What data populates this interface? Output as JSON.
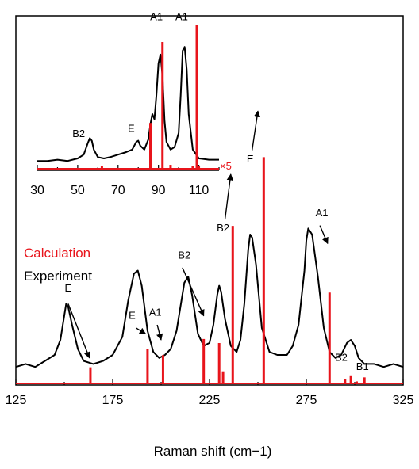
{
  "colors": {
    "experiment": "#000000",
    "calculation": "#e8141b",
    "axis": "#000000",
    "background": "#ffffff"
  },
  "chart_data": [
    {
      "type": "line",
      "panel": "main",
      "xlabel": "Raman shift (cm−1)",
      "xlim": [
        125,
        325
      ],
      "xticks": [
        125,
        175,
        225,
        275,
        325
      ],
      "tick_labels": [
        "125",
        "175",
        "225",
        "275",
        "325"
      ],
      "legend": [
        "Calculation",
        "Experiment"
      ],
      "legend_placement": "left",
      "series": [
        {
          "name": "Experiment",
          "x": [
            125,
            130,
            135,
            140,
            145,
            148,
            151,
            152,
            154,
            157,
            160,
            165,
            170,
            175,
            180,
            183,
            186,
            188,
            190,
            193,
            196,
            199,
            202,
            205,
            208,
            210,
            212,
            214,
            216,
            219,
            222,
            225,
            227,
            229,
            230,
            231,
            233,
            236,
            239,
            241,
            243,
            245,
            246,
            247,
            249,
            252,
            256,
            260,
            265,
            268,
            271,
            274,
            275,
            276,
            278,
            281,
            284,
            287,
            290,
            293,
            296,
            298,
            300,
            302,
            305,
            310,
            315,
            320,
            325
          ],
          "y": [
            0.06,
            0.07,
            0.06,
            0.08,
            0.1,
            0.15,
            0.27,
            0.26,
            0.2,
            0.12,
            0.08,
            0.07,
            0.08,
            0.1,
            0.16,
            0.28,
            0.37,
            0.38,
            0.33,
            0.18,
            0.11,
            0.09,
            0.1,
            0.12,
            0.18,
            0.26,
            0.34,
            0.36,
            0.3,
            0.17,
            0.13,
            0.14,
            0.2,
            0.3,
            0.33,
            0.31,
            0.22,
            0.13,
            0.11,
            0.15,
            0.27,
            0.45,
            0.5,
            0.49,
            0.4,
            0.19,
            0.11,
            0.1,
            0.1,
            0.13,
            0.2,
            0.38,
            0.48,
            0.52,
            0.5,
            0.36,
            0.19,
            0.11,
            0.09,
            0.1,
            0.14,
            0.15,
            0.13,
            0.09,
            0.07,
            0.07,
            0.06,
            0.07,
            0.06
          ]
        },
        {
          "name": "Calculation",
          "peaks": [
            {
              "x": 163.5,
              "y": 0.08
            },
            {
              "x": 193,
              "y": 0.17
            },
            {
              "x": 201,
              "y": 0.14
            },
            {
              "x": 222,
              "y": 0.22
            },
            {
              "x": 230,
              "y": 0.2
            },
            {
              "x": 232,
              "y": 0.06
            },
            {
              "x": 237,
              "y": 0.78
            },
            {
              "x": 253,
              "y": 1.12
            },
            {
              "x": 287,
              "y": 0.45
            },
            {
              "x": 295,
              "y": 0.02
            },
            {
              "x": 298,
              "y": 0.04
            },
            {
              "x": 301,
              "y": 0.01
            },
            {
              "x": 305,
              "y": 0.03
            }
          ]
        }
      ],
      "annotations": [
        {
          "label": "E",
          "text_x": 152,
          "text_y": 0.31,
          "arrow_from": [
            152,
            0.27
          ],
          "arrow_to": [
            163,
            0.09
          ]
        },
        {
          "label": "E",
          "text_x": 185,
          "text_y": 0.22,
          "arrow_from": [
            187,
            0.19
          ],
          "arrow_to": [
            192,
            0.17
          ]
        },
        {
          "label": "A1",
          "text_x": 197,
          "text_y": 0.23,
          "arrow_from": [
            198,
            0.2
          ],
          "arrow_to": [
            200,
            0.15
          ]
        },
        {
          "label": "B2",
          "text_x": 212,
          "text_y": 0.42,
          "arrow_from": [
            211,
            0.39
          ],
          "arrow_to": [
            222,
            0.23
          ]
        },
        {
          "label": "B2",
          "text_x": 232,
          "text_y": 0.51,
          "arrow_from": null,
          "arrow_to": null
        },
        {
          "label": "",
          "text_x": null,
          "text_y": null,
          "arrow_from": [
            233,
            0.55
          ],
          "arrow_to": [
            236,
            0.7
          ]
        },
        {
          "label": "E",
          "text_x": 246,
          "text_y": 0.74,
          "arrow_from": [
            247,
            0.78
          ],
          "arrow_to": [
            250,
            0.91
          ]
        },
        {
          "label": "A1",
          "text_x": 283,
          "text_y": 0.56,
          "arrow_from": [
            282,
            0.53
          ],
          "arrow_to": [
            286,
            0.47
          ]
        },
        {
          "label": "B2",
          "text_x": 293,
          "text_y": 0.08,
          "arrow_from": null,
          "arrow_to": null
        },
        {
          "label": "B1",
          "text_x": 304,
          "text_y": 0.05,
          "arrow_from": null,
          "arrow_to": null
        }
      ]
    },
    {
      "type": "line",
      "panel": "inset",
      "xlim": [
        30,
        120
      ],
      "xticks": [
        30,
        50,
        70,
        90,
        110
      ],
      "tick_labels": [
        "30",
        "50",
        "70",
        "90",
        "110"
      ],
      "scale_note": "×5",
      "series": [
        {
          "name": "Experiment",
          "x": [
            30,
            35,
            40,
            45,
            50,
            53,
            55,
            56,
            57,
            58,
            60,
            63,
            66,
            70,
            74,
            77,
            79,
            80,
            81,
            83,
            85,
            86,
            87,
            88,
            89,
            90,
            91,
            92,
            93,
            94,
            96,
            98,
            100,
            101,
            102,
            103,
            104,
            105,
            107,
            110,
            115,
            120
          ],
          "y": [
            0.03,
            0.03,
            0.04,
            0.03,
            0.05,
            0.08,
            0.17,
            0.21,
            0.19,
            0.12,
            0.06,
            0.05,
            0.06,
            0.08,
            0.1,
            0.12,
            0.18,
            0.19,
            0.15,
            0.12,
            0.2,
            0.32,
            0.4,
            0.36,
            0.55,
            0.8,
            0.87,
            0.7,
            0.35,
            0.18,
            0.12,
            0.14,
            0.25,
            0.55,
            0.9,
            0.93,
            0.75,
            0.4,
            0.12,
            0.05,
            0.04,
            0.04
          ]
        },
        {
          "name": "Calculation",
          "peaks": [
            {
              "x": 62,
              "y": 0.02
            },
            {
              "x": 86,
              "y": 0.35
            },
            {
              "x": 92,
              "y": 0.97
            },
            {
              "x": 96,
              "y": 0.03
            },
            {
              "x": 107,
              "y": 0.02
            },
            {
              "x": 109,
              "y": 1.1
            },
            {
              "x": 110,
              "y": 0.02
            }
          ]
        }
      ],
      "annotations": [
        {
          "label": "B2",
          "x": 50.5,
          "y": 0.22
        },
        {
          "label": "E",
          "x": 76.5,
          "y": 0.26
        },
        {
          "label": "A1",
          "x": 89,
          "y": 1.14
        },
        {
          "label": "A1",
          "x": 101.5,
          "y": 1.14
        }
      ]
    }
  ]
}
